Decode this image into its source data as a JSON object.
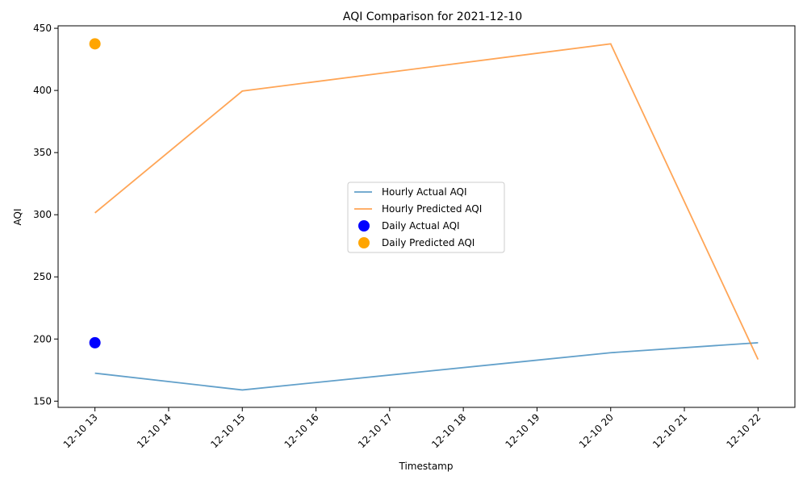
{
  "chart_data": {
    "type": "line",
    "title": "AQI Comparison for 2021-12-10",
    "xlabel": "Timestamp",
    "ylabel": "AQI",
    "x_ticks": [
      "12-10 13",
      "12-10 14",
      "12-10 15",
      "12-10 16",
      "12-10 17",
      "12-10 18",
      "12-10 19",
      "12-10 20",
      "12-10 21",
      "12-10 22"
    ],
    "xlim": [
      "2021-12-10 12:30",
      "2021-12-10 22:30"
    ],
    "ylim": [
      145,
      452
    ],
    "y_ticks": [
      150,
      200,
      250,
      300,
      350,
      400,
      450
    ],
    "grid": false,
    "legend_position": "center",
    "series": [
      {
        "name": "Hourly Actual AQI",
        "kind": "line",
        "color": "#1f77b4",
        "opacity": 0.7,
        "points": [
          {
            "x": "2021-12-10 13:00",
            "y": 172.5
          },
          {
            "x": "2021-12-10 15:00",
            "y": 159
          },
          {
            "x": "2021-12-10 20:00",
            "y": 189
          },
          {
            "x": "2021-12-10 22:00",
            "y": 197
          }
        ]
      },
      {
        "name": "Hourly Predicted AQI",
        "kind": "line",
        "color": "#ff7f0e",
        "opacity": 0.7,
        "points": [
          {
            "x": "2021-12-10 13:00",
            "y": 301.5
          },
          {
            "x": "2021-12-10 15:00",
            "y": 399.5
          },
          {
            "x": "2021-12-10 20:00",
            "y": 437.5
          },
          {
            "x": "2021-12-10 22:00",
            "y": 183.5
          }
        ]
      },
      {
        "name": "Daily Actual AQI",
        "kind": "scatter",
        "color": "#0000ff",
        "points": [
          {
            "x": "2021-12-10 13:00",
            "y": 197
          }
        ]
      },
      {
        "name": "Daily Predicted AQI",
        "kind": "scatter",
        "color": "#ffa500",
        "points": [
          {
            "x": "2021-12-10 13:00",
            "y": 437.5
          }
        ]
      }
    ]
  }
}
